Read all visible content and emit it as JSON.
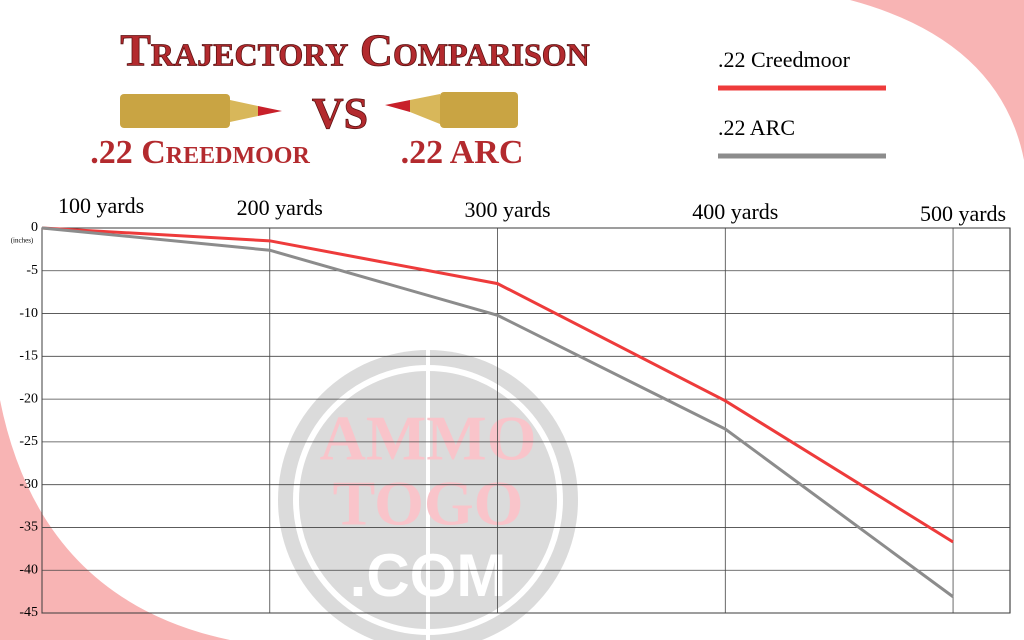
{
  "chart_data": {
    "type": "line",
    "title": "Trajectory Comparison",
    "subtitle": {
      "left": ".22 Creedmoor",
      "vs": "VS",
      "right": ".22 ARC"
    },
    "y_label": "(inches)",
    "watermark": [
      "AMMO",
      "TOGO",
      ".COM"
    ],
    "x": [
      100,
      200,
      300,
      400,
      500
    ],
    "xlim": [
      100,
      525
    ],
    "xticks": [
      {
        "value": 100,
        "label": "100 yards"
      },
      {
        "value": 200,
        "label": "200 yards"
      },
      {
        "value": 300,
        "label": "300 yards"
      },
      {
        "value": 400,
        "label": "400 yards"
      },
      {
        "value": 500,
        "label": "500 yards"
      }
    ],
    "ylim": [
      -45,
      0
    ],
    "yticks": [
      0,
      -5,
      -10,
      -15,
      -20,
      -25,
      -30,
      -35,
      -40,
      -45
    ],
    "grid": true,
    "legend": "top-right",
    "series": [
      {
        "name": ".22 Creedmoor",
        "color": "#ee3b3b",
        "values": [
          0,
          -1.5,
          -6.5,
          -20.2,
          -36.7
        ]
      },
      {
        "name": ".22 ARC",
        "color": "#8c8c8c",
        "values": [
          0,
          -2.6,
          -10.2,
          -23.5,
          -43.1
        ]
      }
    ]
  }
}
